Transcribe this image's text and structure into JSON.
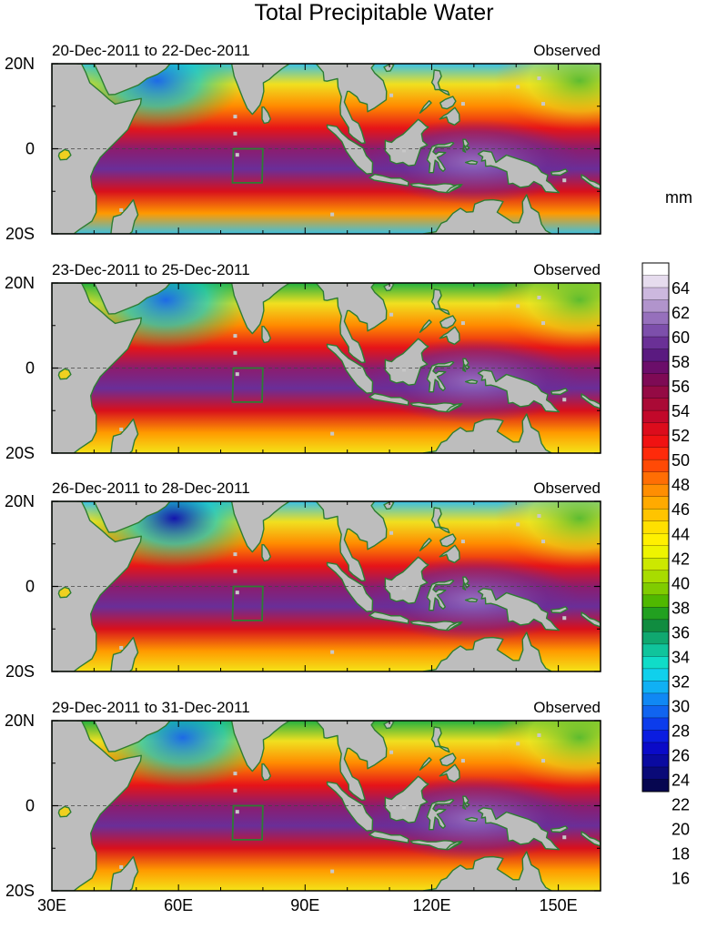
{
  "title": "Total Precipitable Water",
  "units": "mm",
  "source_label": "Observed",
  "panels": [
    {
      "date_range": "20-Dec-2011 to 22-Dec-2011",
      "label": "Observed",
      "moisture_shift": 0
    },
    {
      "date_range": "23-Dec-2011 to 25-Dec-2011",
      "label": "Observed",
      "moisture_shift": 1
    },
    {
      "date_range": "26-Dec-2011 to 28-Dec-2011",
      "label": "Observed",
      "moisture_shift": 2
    },
    {
      "date_range": "29-Dec-2011 to 31-Dec-2011",
      "label": "Observed",
      "moisture_shift": 3
    }
  ],
  "lat_labels": [
    "20N",
    "0",
    "20S"
  ],
  "lon_labels": [
    "30E",
    "60E",
    "90E",
    "120E",
    "150E"
  ],
  "lon_range": [
    30,
    160
  ],
  "lat_range": [
    -20,
    20
  ],
  "colorbar": {
    "labels": [
      "64",
      "62",
      "60",
      "58",
      "56",
      "54",
      "52",
      "50",
      "48",
      "46",
      "44",
      "42",
      "40",
      "38",
      "36",
      "34",
      "32",
      "30",
      "28",
      "26",
      "24",
      "22",
      "20",
      "18",
      "16"
    ],
    "colors": [
      "#ffffff",
      "#e6dcee",
      "#ccb8de",
      "#b194cc",
      "#9670bc",
      "#7d4fab",
      "#6a3096",
      "#5a1a80",
      "#6b0e6a",
      "#7e0a55",
      "#940a44",
      "#aa0a36",
      "#c2082a",
      "#dc0c1c",
      "#f01212",
      "#ff2a0a",
      "#ff4a06",
      "#ff6e04",
      "#ff8e02",
      "#ffaa00",
      "#ffc400",
      "#ffe000",
      "#fff000",
      "#eef400",
      "#cce800",
      "#a8dc00",
      "#80cc00",
      "#50b800",
      "#22a020",
      "#108c40",
      "#10a870",
      "#10c49c",
      "#10dcc8",
      "#10d0ec",
      "#10b0f4",
      "#1088f4",
      "#1064f0",
      "#0c3cec",
      "#0a1ce0",
      "#0a0ac8",
      "#0a0aa0",
      "#0a0a78",
      "#060650"
    ]
  },
  "colors": {
    "land": "#bdbdbd",
    "coast": "#2e7d32",
    "box": "#2e7d32",
    "missing_pixel": "#c8c8c8"
  }
}
